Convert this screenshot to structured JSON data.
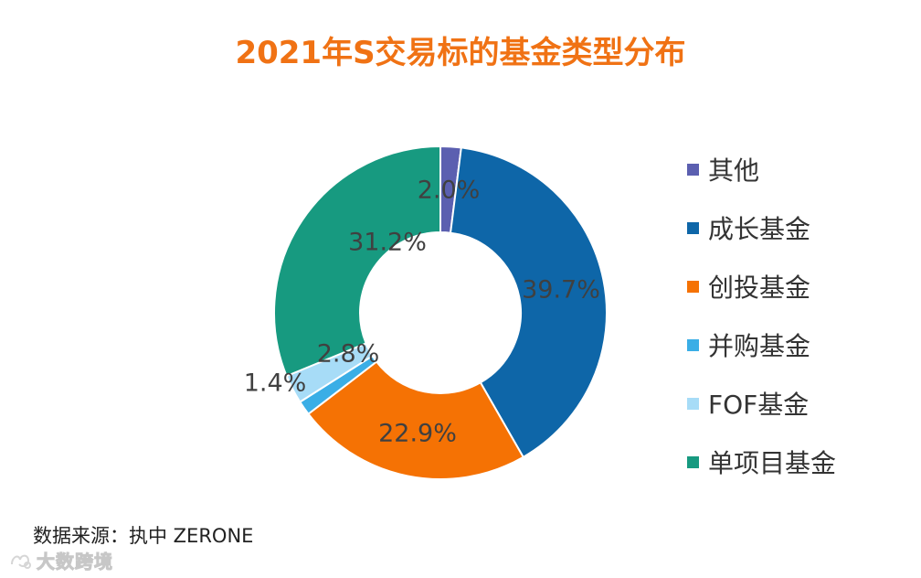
{
  "title": "2021年S交易标的基金类型分布",
  "source": "数据来源：执中 ZERONE",
  "watermark": "大数跨境",
  "chart_data": {
    "type": "pie",
    "variant": "donut",
    "title": "2021年S交易标的基金类型分布",
    "series": [
      {
        "name": "其他",
        "value": 2.0,
        "label": "2.0%",
        "color": "#5b5fb0"
      },
      {
        "name": "成长基金",
        "value": 39.7,
        "label": "39.7%",
        "color": "#0e66a8"
      },
      {
        "name": "创投基金",
        "value": 22.9,
        "label": "22.9%",
        "color": "#f57204"
      },
      {
        "name": "并购基金",
        "value": 1.4,
        "label": "1.4%",
        "color": "#3aaee6"
      },
      {
        "name": "FOF基金",
        "value": 2.8,
        "label": "2.8%",
        "color": "#a7dcf7"
      },
      {
        "name": "单项目基金",
        "value": 31.2,
        "label": "31.2%",
        "color": "#179a80"
      }
    ],
    "legend_position": "right"
  }
}
